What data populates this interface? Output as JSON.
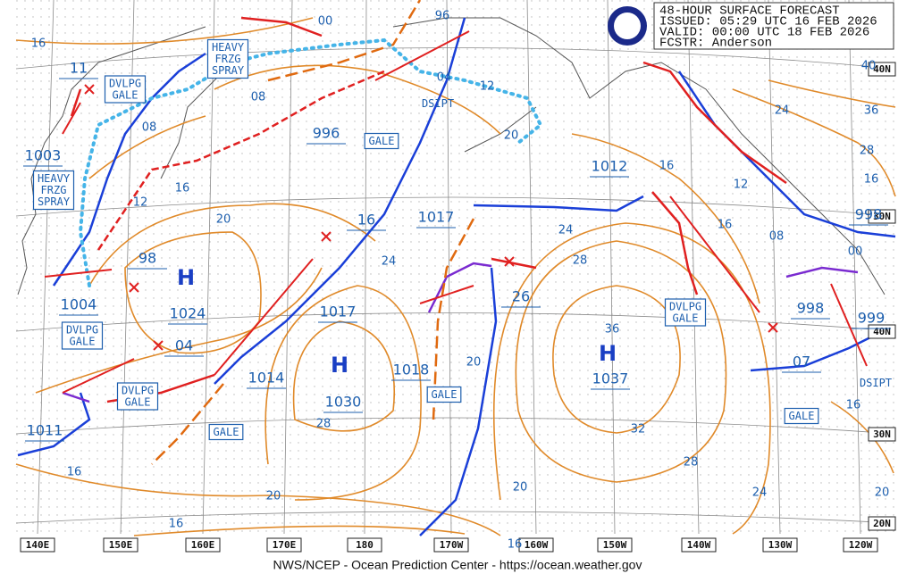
{
  "header": {
    "title": "48-HOUR SURFACE FORECAST",
    "issued": "ISSUED: 05:29 UTC 16 FEB 2026",
    "valid": "VALID:  00:00 UTC 18 FEB 2026",
    "forecaster": "FCSTR:  Anderson"
  },
  "footer": "NWS/NCEP - Ocean Prediction Center - https://ocean.weather.gov",
  "longitudes": [
    "140E",
    "150E",
    "160E",
    "170E",
    "180",
    "170W",
    "160W",
    "150W",
    "140W",
    "130W",
    "120W"
  ],
  "latitudes": [
    "40N",
    "30N",
    "40N",
    "30N",
    "20N"
  ],
  "highs": [
    "H",
    "H",
    "H"
  ],
  "pressures": [
    "11",
    "1003",
    "1004",
    "1011",
    "98",
    "1024",
    "04",
    "1014",
    "1017",
    "16",
    "1017",
    "996",
    "1030",
    "1018",
    "26",
    "1037",
    "1012",
    "998",
    "998",
    "999",
    "07"
  ],
  "boxes": [
    [
      "HEAVY",
      "FRZG",
      "SPRAY"
    ],
    [
      "DVLPG",
      "GALE"
    ],
    [
      "HEAVY",
      "FRZG",
      "SPRAY"
    ],
    [
      "GALE"
    ],
    [
      "DSIPT"
    ],
    [
      "DVLPG",
      "GALE"
    ],
    [
      "DVLPG",
      "GALE"
    ],
    [
      "GALE"
    ],
    [
      "GALE"
    ],
    [
      "DVLPG",
      "GALE"
    ],
    [
      "GALE"
    ],
    [
      "DSIPT"
    ]
  ],
  "isobar_labels": [
    "16",
    "00",
    "96",
    "04",
    "12",
    "20",
    "08",
    "08",
    "12",
    "16",
    "20",
    "24",
    "24",
    "28",
    "36",
    "32",
    "28",
    "24",
    "20",
    "20",
    "28",
    "20",
    "16",
    "16",
    "16",
    "16",
    "12",
    "16",
    "08",
    "00",
    "24",
    "36",
    "28",
    "16",
    "40",
    "16",
    "20"
  ]
}
